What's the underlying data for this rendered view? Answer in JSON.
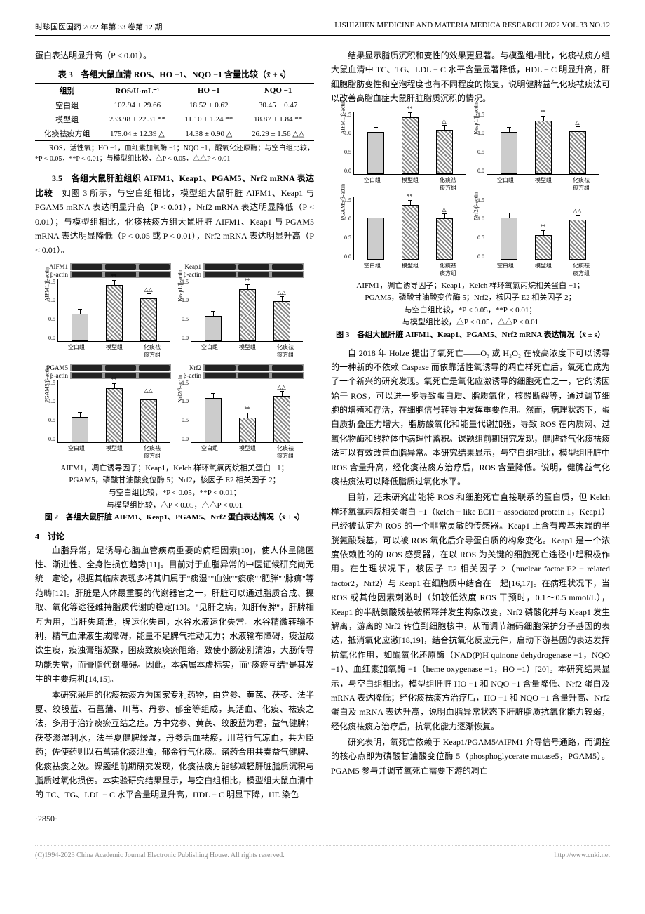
{
  "header": {
    "left": "时珍国医国药 2022 年第 33 卷第 12 期",
    "right": "LISHIZHEN MEDICINE AND MATERIA MEDICA RESEARCH 2022 VOL.33 NO.12"
  },
  "intro_line": "蛋白表达明显升高（P < 0.01）。",
  "table3": {
    "title": "表 3　各组大鼠血清 ROS、HO −1、NQO −1 含量比较（x̄ ± s）",
    "cols": [
      "组别",
      "ROS/U·mL⁻¹",
      "HO −1",
      "NQO −1"
    ],
    "rows": [
      [
        "空白组",
        "102.94 ± 29.66",
        "18.52 ± 0.62",
        "30.45 ± 0.47"
      ],
      [
        "模型组",
        "233.98 ± 22.31 **",
        "11.10 ± 1.24 **",
        "18.87 ± 1.84 **"
      ],
      [
        "化痰祛痰方组",
        "175.04 ± 12.39 △",
        "14.38 ± 0.90 △",
        "26.29 ± 1.56 △△"
      ]
    ],
    "note": "ROS，活性氧；HO −1，血红素加氧酶 −1；NQO −1，醌氧化还原酶；与空白组比较，*P < 0.05，**P < 0.01；与模型组比较，△P < 0.05，△△P < 0.01"
  },
  "sec35": {
    "head": "3.5　各组大鼠肝脏组织 AIFM1、Keap1、PGAM5、Nrf2 mRNA 表达比较",
    "body": "　如图 3 所示，与空白组相比，模型组大鼠肝脏 AIFM1、Keap1 与 PGAM5 mRNA 表达明显升高（P < 0.01），Nrf2 mRNA 表达明显降低（P < 0.01）；与模型组相比，化痰祛痰方组大鼠肝脏 AIFM1、Keap1 与 PGAM5 mRNA 表达明显降低（P < 0.05 或 P < 0.01），Nrf2 mRNA 表达明显升高（P < 0.01）。"
  },
  "fig2": {
    "annot1": "AIFM1，凋亡诱导因子；Keap1，Kelch 样环氧氯丙烷相关蛋白 −1；",
    "annot2": "PGAM5，磷酸甘油酸变位酶 5；Nrf2，核因子 E2 相关因子 2；",
    "annot3": "与空白组比较，*P < 0.05，**P < 0.01；",
    "annot4": "与模型组比较，△P < 0.05，△△P < 0.01",
    "caption": "图 2　各组大鼠肝脏 AIFM1、Keap1、PGAM5、Nrf2 蛋白表达情况（x̄ ± s）",
    "xlabels": [
      "空白组",
      "模型组",
      "化痰祛痰方组"
    ],
    "panels": [
      {
        "name": "AIFM1",
        "ylabel": "AIFM1/β-actin",
        "ymax": 1.5,
        "bars": [
          0.65,
          1.35,
          1.02
        ],
        "syms": [
          "",
          "**",
          "△△"
        ]
      },
      {
        "name": "Keap1",
        "ylabel": "Keap1/β-actin",
        "ymax": 1.5,
        "bars": [
          0.6,
          1.25,
          0.95
        ],
        "syms": [
          "",
          "**",
          "△△"
        ]
      },
      {
        "name": "PGAM5",
        "ylabel": "PGAM5/β-actin",
        "ymax": 1.5,
        "bars": [
          0.6,
          1.3,
          1.02
        ],
        "syms": [
          "",
          "**",
          "△△"
        ]
      },
      {
        "name": "Nrf2",
        "ylabel": "Nrf2/β-actin",
        "ymax": 1.5,
        "bars": [
          1.05,
          0.58,
          1.1
        ],
        "syms": [
          "",
          "**",
          "△△"
        ]
      }
    ]
  },
  "fig3": {
    "annot1": "AIFM1，凋亡诱导因子；Keap1，Kelch 样环氧氯丙烷相关蛋白 −1；",
    "annot2": "PGAM5，磷酸甘油酸变位酶 5；Nrf2，核因子 E2 相关因子 2；",
    "annot3": "与空白组比较，*P < 0.05，**P < 0.01；",
    "annot4": "与模型组比较，△P < 0.05，△△P < 0.01",
    "caption": "图 3　各组大鼠肝脏 AIFM1、Keap1、PGAM5、Nrf2 mRNA 表达情况（x̄ ± s）",
    "xlabels": [
      "空白组",
      "模型组",
      "化痰祛痰方组"
    ],
    "panels": [
      {
        "name": "AIFM1",
        "ylabel": "AIFM1/β-actin",
        "ymax": 1.5,
        "bars": [
          1.0,
          1.35,
          1.05
        ],
        "syms": [
          "",
          "**",
          "△"
        ]
      },
      {
        "name": "Keap1",
        "ylabel": "Keap1/β-actin",
        "ymax": 1.5,
        "bars": [
          1.0,
          1.28,
          1.02
        ],
        "syms": [
          "",
          "**",
          "△"
        ]
      },
      {
        "name": "PGAM5",
        "ylabel": "PGAM5/β-actin",
        "ymax": 1.5,
        "bars": [
          1.0,
          1.3,
          0.98
        ],
        "syms": [
          "",
          "**",
          "△"
        ]
      },
      {
        "name": "Nrf2",
        "ylabel": "Nrf2/β-actin",
        "ymax": 1.5,
        "bars": [
          1.0,
          0.58,
          0.95
        ],
        "syms": [
          "",
          "**",
          "△△"
        ]
      }
    ]
  },
  "sec4": {
    "head": "4　讨论",
    "p1": "血脂异常，是诱导心脑血管疾病重要的病理因素[10]，使人体呈隐匿性、渐进性、全身性损伤趋势[11]。目前对于血脂异常的中医证候研究尚无统一定论，根据其临床表现多将其归属于\"痰湿\"\"血浊\"\"痰瘀\"\"肥胖\"\"脉痹\"等范畴[12]。肝脏是人体最重要的代谢器官之一，肝脏可以通过脂质合成、摄取、氧化等途径维持脂质代谢的稳定[13]。\"见肝之病，知肝传脾\"，肝脾相互为用，当肝失疏泄，脾运化失司，水谷水液运化失常。水谷精微转输不利，精气血津液生成障碍，能量不足脾气推动无力；水液输布障碍，痰湿成饮生痰，痰浊膏脂凝聚，困痰致痰痰瘀阻络，致使小肠泌别清浊，大肠传导功能失常，而膏脂代谢障碍。因此，本病属本虚标实，而\"痰瘀互结\"是其发生的主要病机[14,15]。",
    "p2": "本研究采用的化痰祛痰方为国家专利药物，由党参、黄芪、茯苓、法半夏、绞股蓝、石菖蒲、川芎、丹参、郁金等组成，其活血、化痰、祛痰之法，多用于治疗痰瘀互结之症。方中党参、黄芪、绞股蓝为君，益气健脾；茯苓渗湿利水，法半夏健脾燥湿，丹参活血祛瘀，川芎行气凉血，共为臣药；佐使药则以石菖蒲化痰泄浊，郁金行气化痰。诸药合用共奏益气健脾、化痰祛痰之效。课题组前期研究发现，化痰祛痰方能够减轻肝脏脂质沉积与脂质过氧化损伤。本实验研究结果显示，与空白组相比，模型组大鼠血清中的 TC、TG、LDL − C 水平含量明显升高，HDL − C 明显下降，HE 染色"
  },
  "r_p1": "结果显示脂质沉积和变性的效果更显著。与模型组相比，化痰祛痰方组大鼠血清中 TC、TG、LDL − C 水平含量显著降低，HDL − C 明显升高，肝细胞脂肪变性和空泡程度也有不同程度的恢复，说明健脾益气化痰祛痰法可以改善高脂血症大鼠肝脏脂质沉积的情况。",
  "r_p2": "自 2018 年 Holze 提出了氧死亡——O₃ 或 H₂O₂ 在较高浓度下可以诱导的一种新的不依赖 Caspase 而依靠活性氧诱导的凋亡样死亡后，氧死亡成为了一个新兴的研究发现。氧死亡是氧化应激诱导的细胞死亡之一，它的诱因始于 ROS，可以进一步导致蛋白质、脂质氧化，核酸断裂等，通过调节细胞的增殖和存活，在细胞信号转导中发挥重要作用。然而，病理状态下，蛋白质折叠压力增大，脂肪酸氧化和能量代谢加强，导致 ROS 在内质网、过氧化物酶和线粒体中病理性蓄积。课题组前期研究发现，健脾益气化痰祛痰法可以有效改善血脂异常。本研究结果显示，与空白组相比，模型组肝脏中 ROS 含量升高，经化痰祛痰方治疗后，ROS 含量降低。说明，健脾益气化痰祛痰法可以降低脂质过氧化水平。",
  "r_p3": "目前，还未研究出能将 ROS 和细胞死亡直接联系的蛋白质，但 Kelch 样环氧氯丙烷相关蛋白 −1（kelch − like ECH − associated protein 1，Keap1）已经被认定为 ROS 的一个非常灵敏的传感器。Keap1 上含有羧基末端的半胱氨酸残基，可以被 ROS 氧化后介导蛋白质的构象变化。Keap1 是一个浓度依赖性的的 ROS 感受器，在以 ROS 为关键的细胞死亡途径中起积极作用。在生理状况下，核因子 E2 相关因子 2（nuclear factor E2 − related factor2，Nrf2）与 Keap1 在细胞质中结合在一起[16,17]。在病理状况下，当 ROS 或其他因素刺激时（如较低浓度 ROS 干预时，0.1～0.5 mmol/L），Keap1 的半胱氨酸残基被稀释并发生构象改变，Nrf2 磷酸化并与 Keap1 发生解离，游离的 Nrf2 转位到细胞核中，从而调节编码细胞保护分子基因的表达，抵消氧化应激[18,19]，结合抗氧化反应元件，启动下游基因的表达发挥抗氧化作用，如醌氧化还原酶（NAD(P)H quinone dehydrogenase −1，NQO −1）、血红素加氧酶 −1（heme oxygenase −1，HO −1）[20]。本研究结果显示，与空白组相比，模型组肝脏 HO −1 和 NQO −1 含量降低、Nrf2 蛋白及 mRNA 表达降低；经化痰祛痰方治疗后，HO −1 和 NQO −1 含量升高、Nrf2 蛋白及 mRNA 表达升高，说明血脂异常状态下肝脏脂质抗氧化能力较弱，经化痰祛痰方治疗后，抗氧化能力逐渐恢复。",
  "r_p4": "研究表明，氧死亡依赖于 Keap1/PGAM5/AIFM1 介导信号通路，而调控的核心点即为磷酸甘油酸变位酶 5（phosphoglycerate mutase5，PGAM5）。PGAM5 参与并调节氧死亡需要下游的凋亡",
  "page_num": "·2850·",
  "footer": {
    "left": "(C)1994-2023 China Academic Journal Electronic Publishing House. All rights reserved.",
    "right": "http://www.cnki.net"
  }
}
